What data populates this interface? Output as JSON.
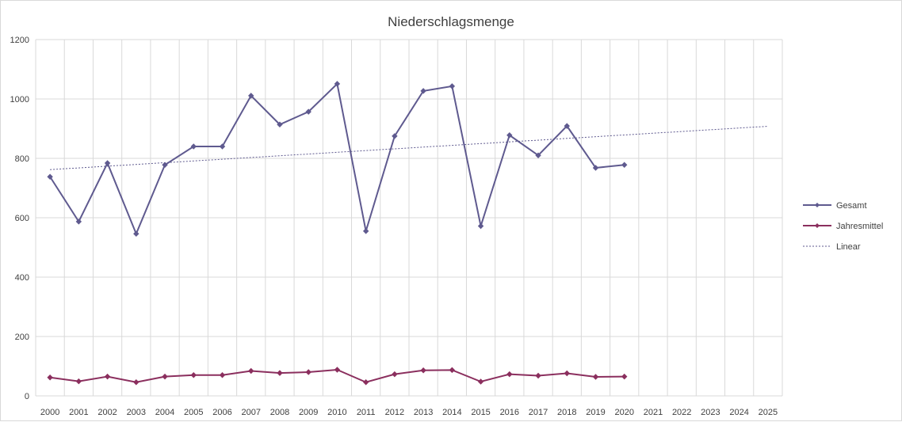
{
  "chart_data": {
    "type": "line",
    "title": "Niederschlagsmenge",
    "xlabel": "",
    "ylabel": "",
    "categories": [
      "2000",
      "2001",
      "2002",
      "2003",
      "2004",
      "2005",
      "2006",
      "2007",
      "2008",
      "2009",
      "2010",
      "2011",
      "2012",
      "2013",
      "2014",
      "2015",
      "2016",
      "2017",
      "2018",
      "2019",
      "2020",
      "2021",
      "2022",
      "2023",
      "2024",
      "2025"
    ],
    "ylim": [
      0,
      1200
    ],
    "yticks": [
      "0",
      "200",
      "400",
      "600",
      "800",
      "1000",
      "1200"
    ],
    "grid": true,
    "legend_position": "right",
    "series": [
      {
        "name": "Gesamt",
        "color": "#5f5a8f",
        "marker": "diamond",
        "values": [
          738,
          587,
          784,
          546,
          778,
          840,
          840,
          1011,
          914,
          957,
          1051,
          555,
          875,
          1027,
          1043,
          572,
          878,
          810,
          909,
          768,
          778,
          null,
          null,
          null,
          null,
          null
        ]
      },
      {
        "name": "Jahresmittel",
        "color": "#8b2f5e",
        "marker": "diamond",
        "values": [
          62,
          49,
          65,
          46,
          65,
          70,
          70,
          84,
          77,
          80,
          88,
          46,
          73,
          86,
          87,
          48,
          73,
          68,
          76,
          64,
          65,
          null,
          null,
          null,
          null,
          null
        ]
      },
      {
        "name": "Linear",
        "color": "#5f5a8f",
        "style": "dashed",
        "trend_start": 762,
        "trend_end": 908
      }
    ]
  }
}
